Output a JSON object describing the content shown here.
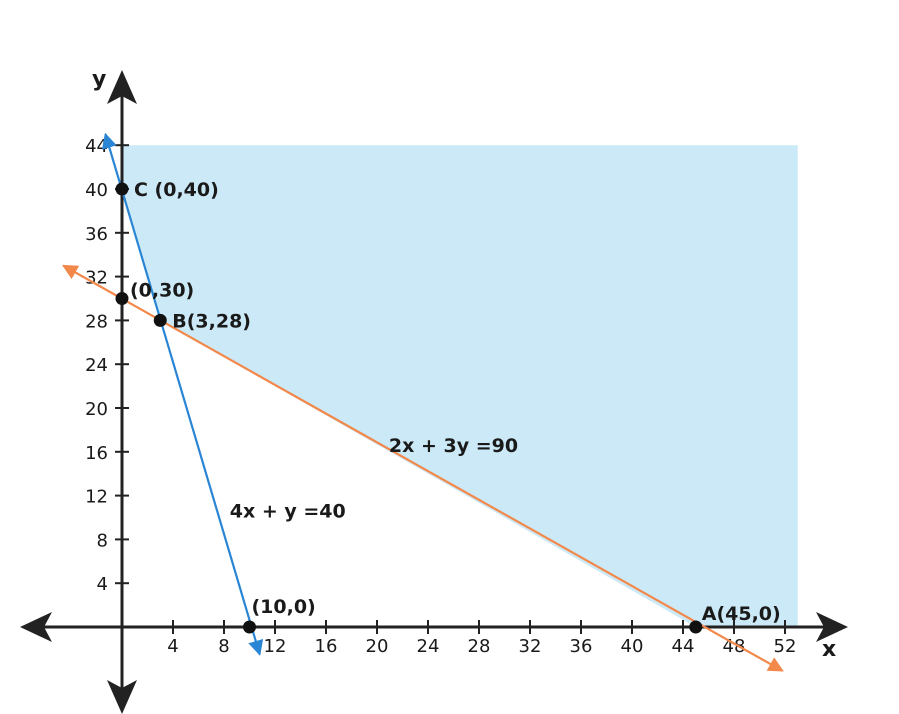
{
  "chart_data": {
    "type": "line",
    "title": "",
    "xlabel": "x",
    "ylabel": "y",
    "x_ticks": [
      4,
      8,
      12,
      16,
      20,
      24,
      28,
      32,
      36,
      40,
      44,
      48,
      52
    ],
    "y_ticks": [
      4,
      8,
      12,
      16,
      20,
      24,
      28,
      32,
      36,
      40,
      44
    ],
    "x_tick_labels": [
      "4",
      "8",
      "12",
      "16",
      "20",
      "24",
      "28",
      "32",
      "36",
      "40",
      "44",
      "48",
      "52"
    ],
    "y_tick_labels": [
      "4",
      "8",
      "12",
      "16",
      "20",
      "24",
      "28",
      "32",
      "36",
      "40",
      "44"
    ],
    "grid": false,
    "series": [
      {
        "name": "4x + y =40",
        "color": "#2a86d4",
        "x": [
          -1.3,
          10.8
        ],
        "y": [
          45.0,
          -2.5
        ]
      },
      {
        "name": "2x + 3y =90",
        "color": "#f2884a",
        "x": [
          -4.6,
          51.8
        ],
        "y": [
          33.0,
          -4.0
        ]
      }
    ],
    "feasible_region": {
      "color": "#cce9f7",
      "vertices": [
        {
          "x": 0,
          "y": 44
        },
        {
          "x": 53,
          "y": 44
        },
        {
          "x": 53,
          "y": 0
        },
        {
          "x": 45,
          "y": 0
        },
        {
          "x": 3,
          "y": 28
        },
        {
          "x": 0,
          "y": 40
        }
      ]
    },
    "points": [
      {
        "label": "C (0,40)",
        "x": 0,
        "y": 40
      },
      {
        "label": "(0,30)",
        "x": 0,
        "y": 30
      },
      {
        "label": "B(3,28)",
        "x": 3,
        "y": 28
      },
      {
        "label": "(10,0)",
        "x": 10,
        "y": 0
      },
      {
        "label": "A(45,0)",
        "x": 45,
        "y": 0
      }
    ],
    "annotations": [
      {
        "text": "2x + 3y =90",
        "x": 26,
        "y": 16
      },
      {
        "text": "4x + y =40",
        "x": 13,
        "y": 10
      }
    ]
  }
}
